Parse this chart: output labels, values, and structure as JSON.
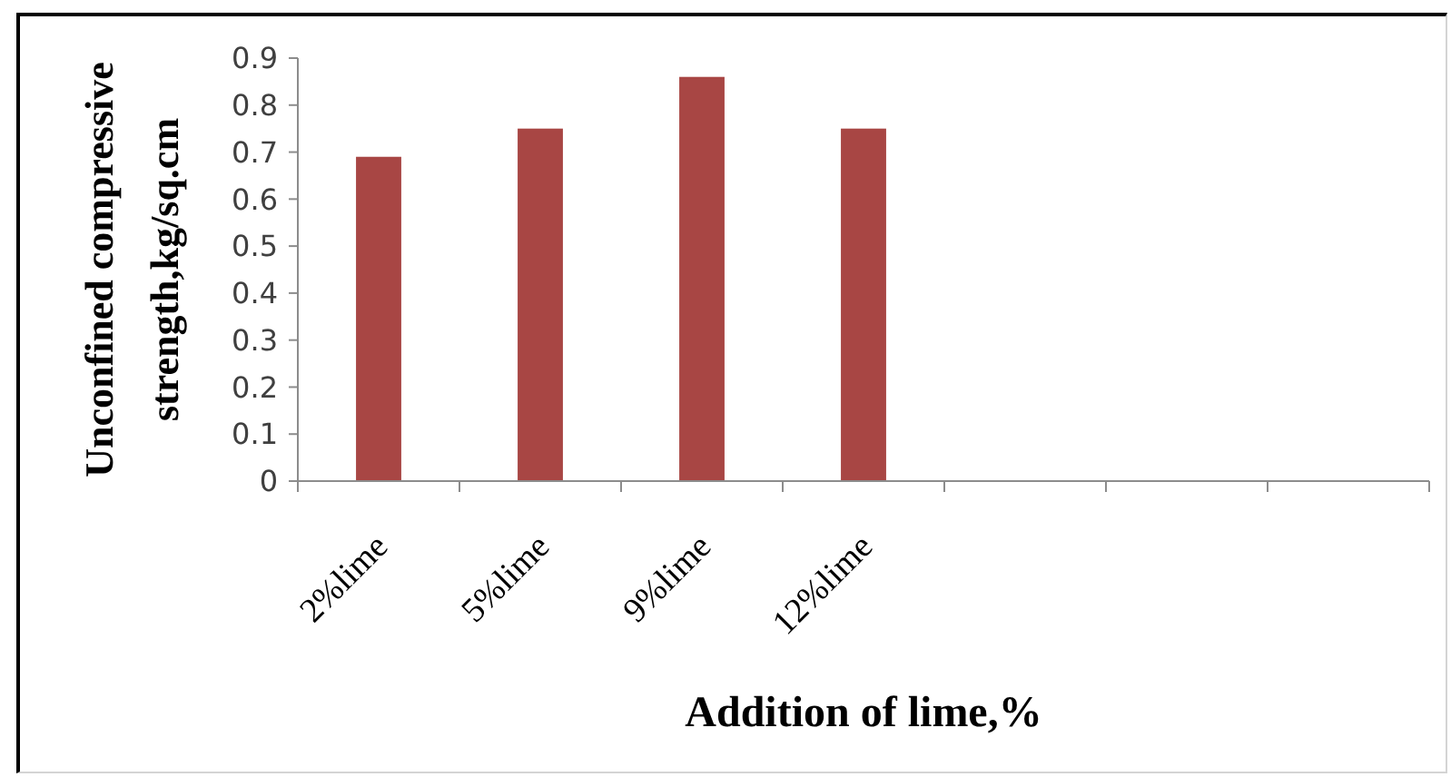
{
  "chart_data": {
    "type": "bar",
    "xlabel": "Addition of lime,%",
    "ylabel": "Unconfined compressive strength,kg/sq.cm",
    "categories": [
      "2%lime",
      "5%lime",
      "9%lime",
      "12%lime",
      null,
      null,
      null
    ],
    "values": [
      0.69,
      0.75,
      0.86,
      0.75,
      null,
      null,
      null
    ],
    "color": "#a84644",
    "ylim": [
      0,
      0.9
    ],
    "yticks": [
      0,
      0.1,
      0.2,
      0.3,
      0.4,
      0.5,
      0.6,
      0.7,
      0.8,
      0.9
    ]
  }
}
